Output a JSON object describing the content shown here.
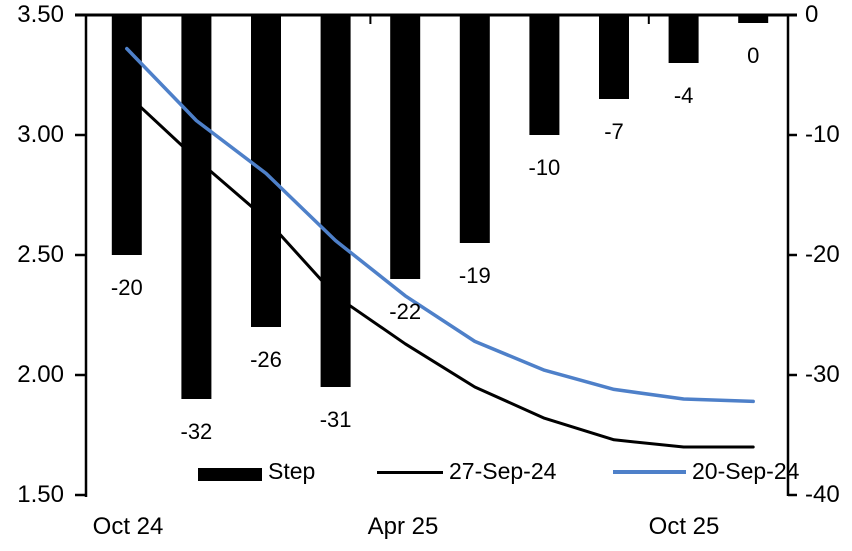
{
  "chart_data": {
    "type": "combo_bar_line",
    "title": "",
    "xlabel": "",
    "ylabel_left": "",
    "ylabel_right": "",
    "grid": false,
    "legend_position": "bottom-inside",
    "x_tick_labels": [
      {
        "label": "Oct 24",
        "slot": 0
      },
      {
        "label": "Apr 25",
        "slot": 4
      },
      {
        "label": "Oct 25",
        "slot": 8
      }
    ],
    "left_axis": {
      "min": 1.5,
      "max": 3.5,
      "ticks": [
        "3.50",
        "3.00",
        "2.50",
        "2.00",
        "1.50"
      ]
    },
    "right_axis": {
      "min": -40,
      "max": 0,
      "ticks": [
        "0",
        "-10",
        "-20",
        "-30",
        "-40"
      ]
    },
    "bars": {
      "name": "Step",
      "axis": "right",
      "color": "#000000",
      "values": [
        -20,
        -32,
        -26,
        -31,
        -22,
        -19,
        -10,
        -7,
        -4,
        0
      ],
      "labels": [
        "-20",
        "-32",
        "-26",
        "-31",
        "-22",
        "-19",
        "-10",
        "-7",
        "-4",
        "0"
      ]
    },
    "lines": [
      {
        "name": "27-Sep-24",
        "axis": "left",
        "color": "#000000",
        "stroke_width": 3,
        "values": [
          3.17,
          2.9,
          2.65,
          2.33,
          2.13,
          1.95,
          1.82,
          1.73,
          1.7,
          1.7
        ]
      },
      {
        "name": "20-Sep-24",
        "axis": "left",
        "color": "#4E80C9",
        "stroke_width": 3.5,
        "values": [
          3.36,
          3.06,
          2.84,
          2.56,
          2.33,
          2.14,
          2.02,
          1.94,
          1.9,
          1.89
        ]
      }
    ],
    "legend": [
      {
        "label": "Step",
        "type": "bar-swatch",
        "color": "#000000"
      },
      {
        "label": "27-Sep-24",
        "type": "line-swatch",
        "color": "#000000"
      },
      {
        "label": "20-Sep-24",
        "type": "line-swatch",
        "color": "#4E80C9"
      }
    ]
  }
}
